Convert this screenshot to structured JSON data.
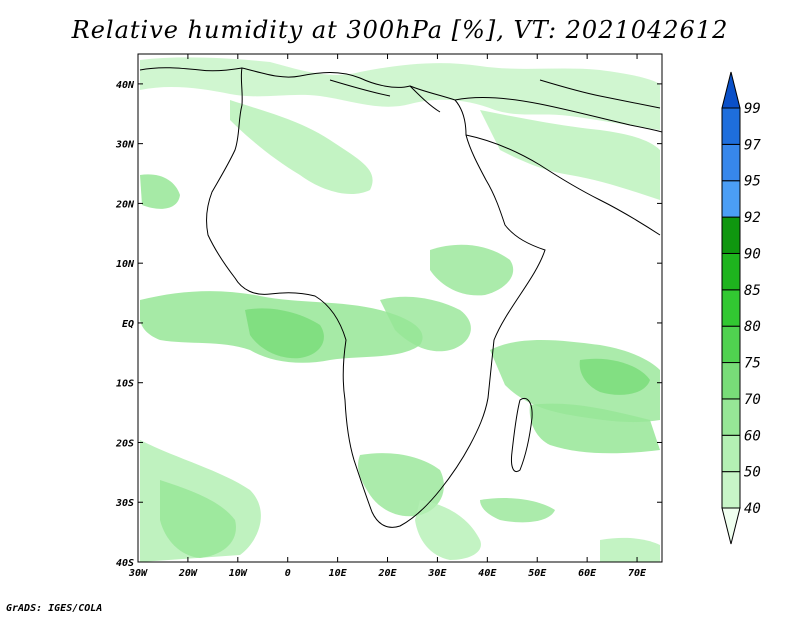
{
  "title": "Relative humidity at 300hPa [%], VT: 2021042612",
  "credit": "GrADS: IGES/COLA",
  "map": {
    "lon_range": [
      -30,
      75
    ],
    "lat_range": [
      -40,
      45
    ],
    "lon_ticks": [
      {
        "value": -30,
        "label": "30W"
      },
      {
        "value": -20,
        "label": "20W"
      },
      {
        "value": -10,
        "label": "10W"
      },
      {
        "value": 0,
        "label": "0"
      },
      {
        "value": 10,
        "label": "10E"
      },
      {
        "value": 20,
        "label": "20E"
      },
      {
        "value": 30,
        "label": "30E"
      },
      {
        "value": 40,
        "label": "40E"
      },
      {
        "value": 50,
        "label": "50E"
      },
      {
        "value": 60,
        "label": "60E"
      },
      {
        "value": 70,
        "label": "70E"
      }
    ],
    "lat_ticks": [
      {
        "value": 40,
        "label": "40N"
      },
      {
        "value": 30,
        "label": "30N"
      },
      {
        "value": 20,
        "label": "20N"
      },
      {
        "value": 10,
        "label": "10N"
      },
      {
        "value": 0,
        "label": "EQ"
      },
      {
        "value": -10,
        "label": "10S"
      },
      {
        "value": -20,
        "label": "20S"
      },
      {
        "value": -30,
        "label": "30S"
      },
      {
        "value": -40,
        "label": "40S"
      }
    ]
  },
  "colorbar": {
    "levels": [
      "40",
      "50",
      "60",
      "70",
      "75",
      "80",
      "85",
      "90",
      "92",
      "95",
      "97",
      "99"
    ],
    "colors": [
      "#f0fff0",
      "#c8f5c8",
      "#b4f0b4",
      "#96e696",
      "#78dc78",
      "#50d250",
      "#32c832",
      "#1eb41e",
      "#0f960f",
      "#4b9ef5",
      "#3787eb",
      "#1e6edc",
      "#0a50c8"
    ]
  }
}
